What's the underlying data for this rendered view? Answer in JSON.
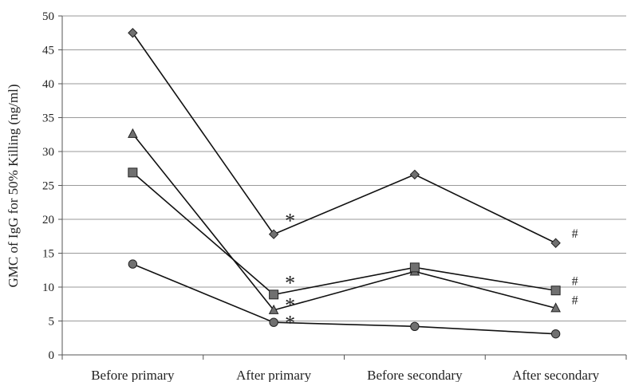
{
  "chart_data": {
    "type": "line",
    "title": "",
    "xlabel": "",
    "ylabel": "GMC of IgG for 50% Killing (ng/ml)",
    "ylim": [
      0,
      50
    ],
    "yticks": [
      0,
      5,
      10,
      15,
      20,
      25,
      30,
      35,
      40,
      45,
      50
    ],
    "grid": true,
    "legend": "none",
    "categories": [
      "Before primary",
      "After primary",
      "Before secondary",
      "After secondary"
    ],
    "series": [
      {
        "marker": "diamond",
        "color": "#707070",
        "values": [
          47.5,
          17.8,
          26.6,
          16.5
        ]
      },
      {
        "marker": "triangle",
        "color": "#707070",
        "values": [
          32.6,
          6.6,
          12.3,
          6.9
        ]
      },
      {
        "marker": "square",
        "color": "#707070",
        "values": [
          26.9,
          8.9,
          12.9,
          9.5
        ]
      },
      {
        "marker": "circle",
        "color": "#707070",
        "values": [
          13.4,
          4.8,
          4.2,
          3.1
        ]
      }
    ],
    "annotations": [
      {
        "text": "*",
        "category": "After primary",
        "y": 20.2,
        "kind": "star"
      },
      {
        "text": "*",
        "category": "After primary",
        "y": 11.0,
        "kind": "star"
      },
      {
        "text": "*",
        "category": "After primary",
        "y": 7.7,
        "kind": "star"
      },
      {
        "text": "*",
        "category": "After primary",
        "y": 5.1,
        "kind": "star"
      },
      {
        "text": "#",
        "category": "After secondary",
        "y": 18.0,
        "kind": "hash"
      },
      {
        "text": "#",
        "category": "After secondary",
        "y": 11.0,
        "kind": "hash"
      },
      {
        "text": "#",
        "category": "After secondary",
        "y": 8.2,
        "kind": "hash"
      }
    ]
  }
}
